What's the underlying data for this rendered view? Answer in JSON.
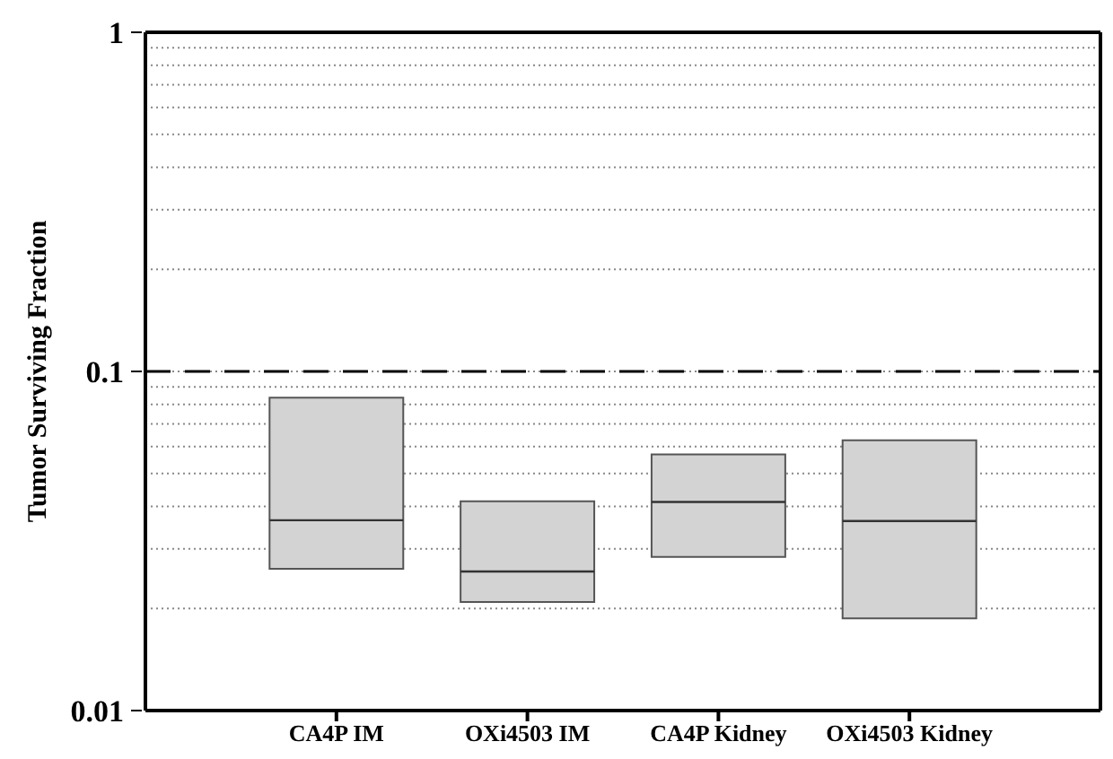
{
  "chart_data": {
    "type": "box",
    "ylabel": "Tumor Surviving Fraction",
    "categories": [
      "CA4P IM",
      "OXi4503 IM",
      "CA4P Kidney",
      "OXi4503 Kidney"
    ],
    "boxes": [
      {
        "low": 0.0262,
        "q1": 0.0262,
        "median": 0.0364,
        "q3": 0.0837,
        "high": 0.0837
      },
      {
        "low": 0.0209,
        "q1": 0.0209,
        "median": 0.0257,
        "q3": 0.0414,
        "high": 0.0414
      },
      {
        "low": 0.0284,
        "q1": 0.0284,
        "median": 0.0412,
        "q3": 0.0569,
        "high": 0.0569
      },
      {
        "low": 0.0187,
        "q1": 0.0187,
        "median": 0.0362,
        "q3": 0.0627,
        "high": 0.0627
      }
    ],
    "color": "#d3d3d3",
    "log": true,
    "ylim": [
      0.01,
      1
    ],
    "yticks": [
      0.01,
      {
        "value": 0.02,
        "label": null
      },
      {
        "value": 0.03,
        "label": null
      },
      {
        "value": 0.04,
        "label": null
      },
      {
        "value": 0.05,
        "label": null
      },
      {
        "value": 0.06,
        "label": null
      },
      {
        "value": 0.07,
        "label": null
      },
      {
        "value": 0.08,
        "label": null
      },
      {
        "value": 0.09,
        "label": null
      },
      0.1,
      {
        "value": 0.2,
        "label": null
      },
      {
        "value": 0.3,
        "label": null
      },
      {
        "value": 0.4,
        "label": null
      },
      {
        "value": 0.5,
        "label": null
      },
      {
        "value": 0.6,
        "label": null
      },
      {
        "value": 0.7,
        "label": null
      },
      {
        "value": 0.8,
        "label": null
      },
      {
        "value": 0.9,
        "label": null
      },
      1
    ],
    "grid": "y",
    "ref_lines": [
      {
        "axis": "y",
        "value": 0.1,
        "line_style": "dashed",
        "color": "#000000"
      }
    ]
  }
}
